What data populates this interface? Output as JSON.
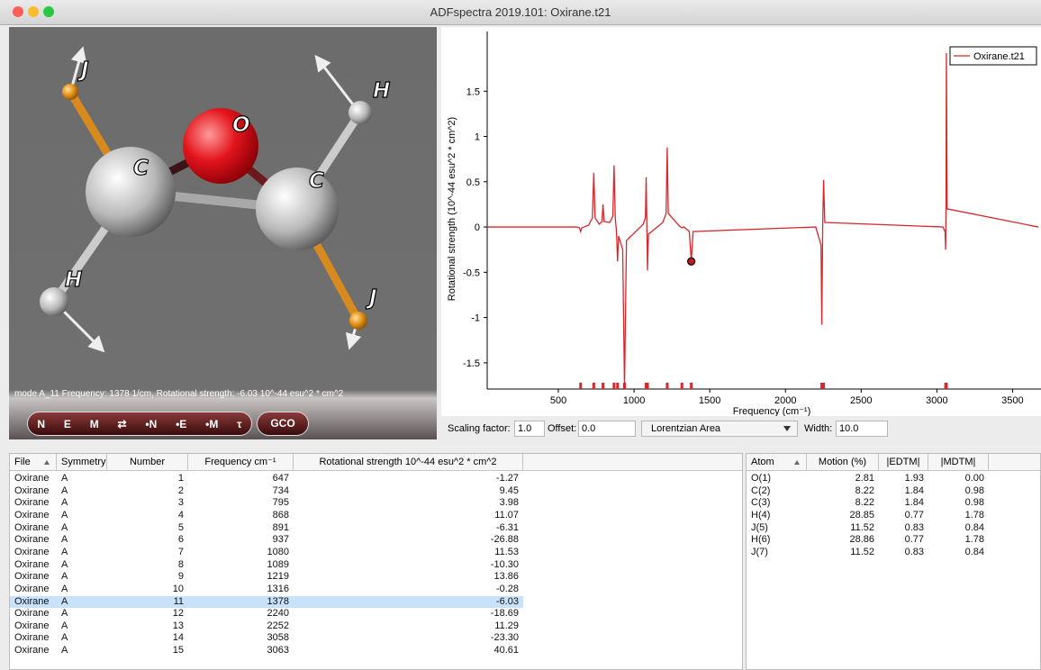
{
  "window": {
    "title": "ADFspectra 2019.101: Oxirane.t21"
  },
  "viewer": {
    "status": "mode A_11 Frequency: 1378 1/cm, Rotational strength:  -6.03 10^-44 esu^2 * cm^2",
    "atom_labels": [
      "J",
      "O",
      "H",
      "C",
      "C",
      "H",
      "J"
    ],
    "buttons": [
      "N",
      "E",
      "M",
      "⇄",
      "•N",
      "•E",
      "•M",
      "τ"
    ],
    "gco": "GCO"
  },
  "chart_data": {
    "type": "line",
    "xlabel": "Frequency (cm⁻¹)",
    "ylabel": "Rotational strength (10^-44 esu^2 * cm^2)",
    "xlim": [
      30,
      3670
    ],
    "ylim": [
      -1.79,
      1.99
    ],
    "xticks": [
      500,
      1000,
      1500,
      2000,
      2500,
      3000,
      3500
    ],
    "yticks": [
      -1.5,
      -1,
      -0.5,
      0,
      0.5,
      1,
      1.5
    ],
    "legend": "top-right",
    "series": [
      {
        "name": "Oxirane.t21",
        "color": "#d9262b",
        "x": [
          30,
          620,
          640,
          647,
          655,
          700,
          725,
          734,
          743,
          770,
          788,
          795,
          802,
          840,
          860,
          868,
          876,
          884,
          891,
          898,
          925,
          937,
          950,
          1060,
          1075,
          1080,
          1084,
          1089,
          1095,
          1190,
          1212,
          1219,
          1226,
          1300,
          1316,
          1330,
          1365,
          1378,
          1390,
          2200,
          2235,
          2240,
          2246,
          2252,
          2260,
          3040,
          3054,
          3058,
          3061,
          3063,
          3068,
          3670
        ],
        "values": [
          0,
          0,
          -0.01,
          -0.05,
          -0.01,
          0.02,
          0.1,
          0.6,
          0.1,
          0.03,
          0.06,
          0.25,
          0.06,
          0.05,
          0.12,
          0.68,
          0.1,
          -0.05,
          -0.38,
          -0.1,
          -0.25,
          -1.78,
          -0.15,
          0.03,
          0.1,
          0.55,
          0.1,
          -0.48,
          -0.08,
          0.05,
          0.15,
          0.88,
          0.15,
          0.01,
          -0.01,
          0,
          -0.05,
          -0.38,
          -0.05,
          0,
          -0.2,
          -1.08,
          0,
          0.52,
          0.05,
          0,
          -0.05,
          -0.25,
          0.3,
          1.92,
          0.2,
          0
        ]
      }
    ],
    "sticks": [
      647,
      734,
      795,
      868,
      891,
      937,
      1080,
      1089,
      1219,
      1316,
      1378,
      2240,
      2252,
      3058,
      3063
    ],
    "highlight": {
      "x": 1378,
      "y": -0.38
    }
  },
  "controls": {
    "scaling_label": "Scaling factor:",
    "scaling": "1.0",
    "offset_label": "Offset:",
    "offset": "0.0",
    "lineshape": "Lorentzian Area",
    "width_label": "Width:",
    "width": "10.0"
  },
  "table": {
    "columns": [
      "File",
      "Symmetry",
      "Number",
      "Frequency cm⁻¹",
      "Rotational strength 10^-44 esu^2 * cm^2"
    ],
    "selected": 10,
    "rows": [
      [
        "Oxirane",
        "A",
        "1",
        "647",
        "-1.27"
      ],
      [
        "Oxirane",
        "A",
        "2",
        "734",
        "9.45"
      ],
      [
        "Oxirane",
        "A",
        "3",
        "795",
        "3.98"
      ],
      [
        "Oxirane",
        "A",
        "4",
        "868",
        "11.07"
      ],
      [
        "Oxirane",
        "A",
        "5",
        "891",
        "-6.31"
      ],
      [
        "Oxirane",
        "A",
        "6",
        "937",
        "-26.88"
      ],
      [
        "Oxirane",
        "A",
        "7",
        "1080",
        "11.53"
      ],
      [
        "Oxirane",
        "A",
        "8",
        "1089",
        "-10.30"
      ],
      [
        "Oxirane",
        "A",
        "9",
        "1219",
        "13.86"
      ],
      [
        "Oxirane",
        "A",
        "10",
        "1316",
        "-0.28"
      ],
      [
        "Oxirane",
        "A",
        "11",
        "1378",
        "-6.03"
      ],
      [
        "Oxirane",
        "A",
        "12",
        "2240",
        "-18.69"
      ],
      [
        "Oxirane",
        "A",
        "13",
        "2252",
        "11.29"
      ],
      [
        "Oxirane",
        "A",
        "14",
        "3058",
        "-23.30"
      ],
      [
        "Oxirane",
        "A",
        "15",
        "3063",
        "40.61"
      ]
    ]
  },
  "atom_table": {
    "columns": [
      "Atom",
      "Motion (%)",
      "|EDTM|",
      "|MDTM|"
    ],
    "rows": [
      [
        "O(1)",
        "2.81",
        "1.93",
        "0.00"
      ],
      [
        "C(2)",
        "8.22",
        "1.84",
        "0.98"
      ],
      [
        "C(3)",
        "8.22",
        "1.84",
        "0.98"
      ],
      [
        "H(4)",
        "28.85",
        "0.77",
        "1.78"
      ],
      [
        "J(5)",
        "11.52",
        "0.83",
        "0.84"
      ],
      [
        "H(6)",
        "28.86",
        "0.77",
        "1.78"
      ],
      [
        "J(7)",
        "11.52",
        "0.83",
        "0.84"
      ]
    ]
  }
}
